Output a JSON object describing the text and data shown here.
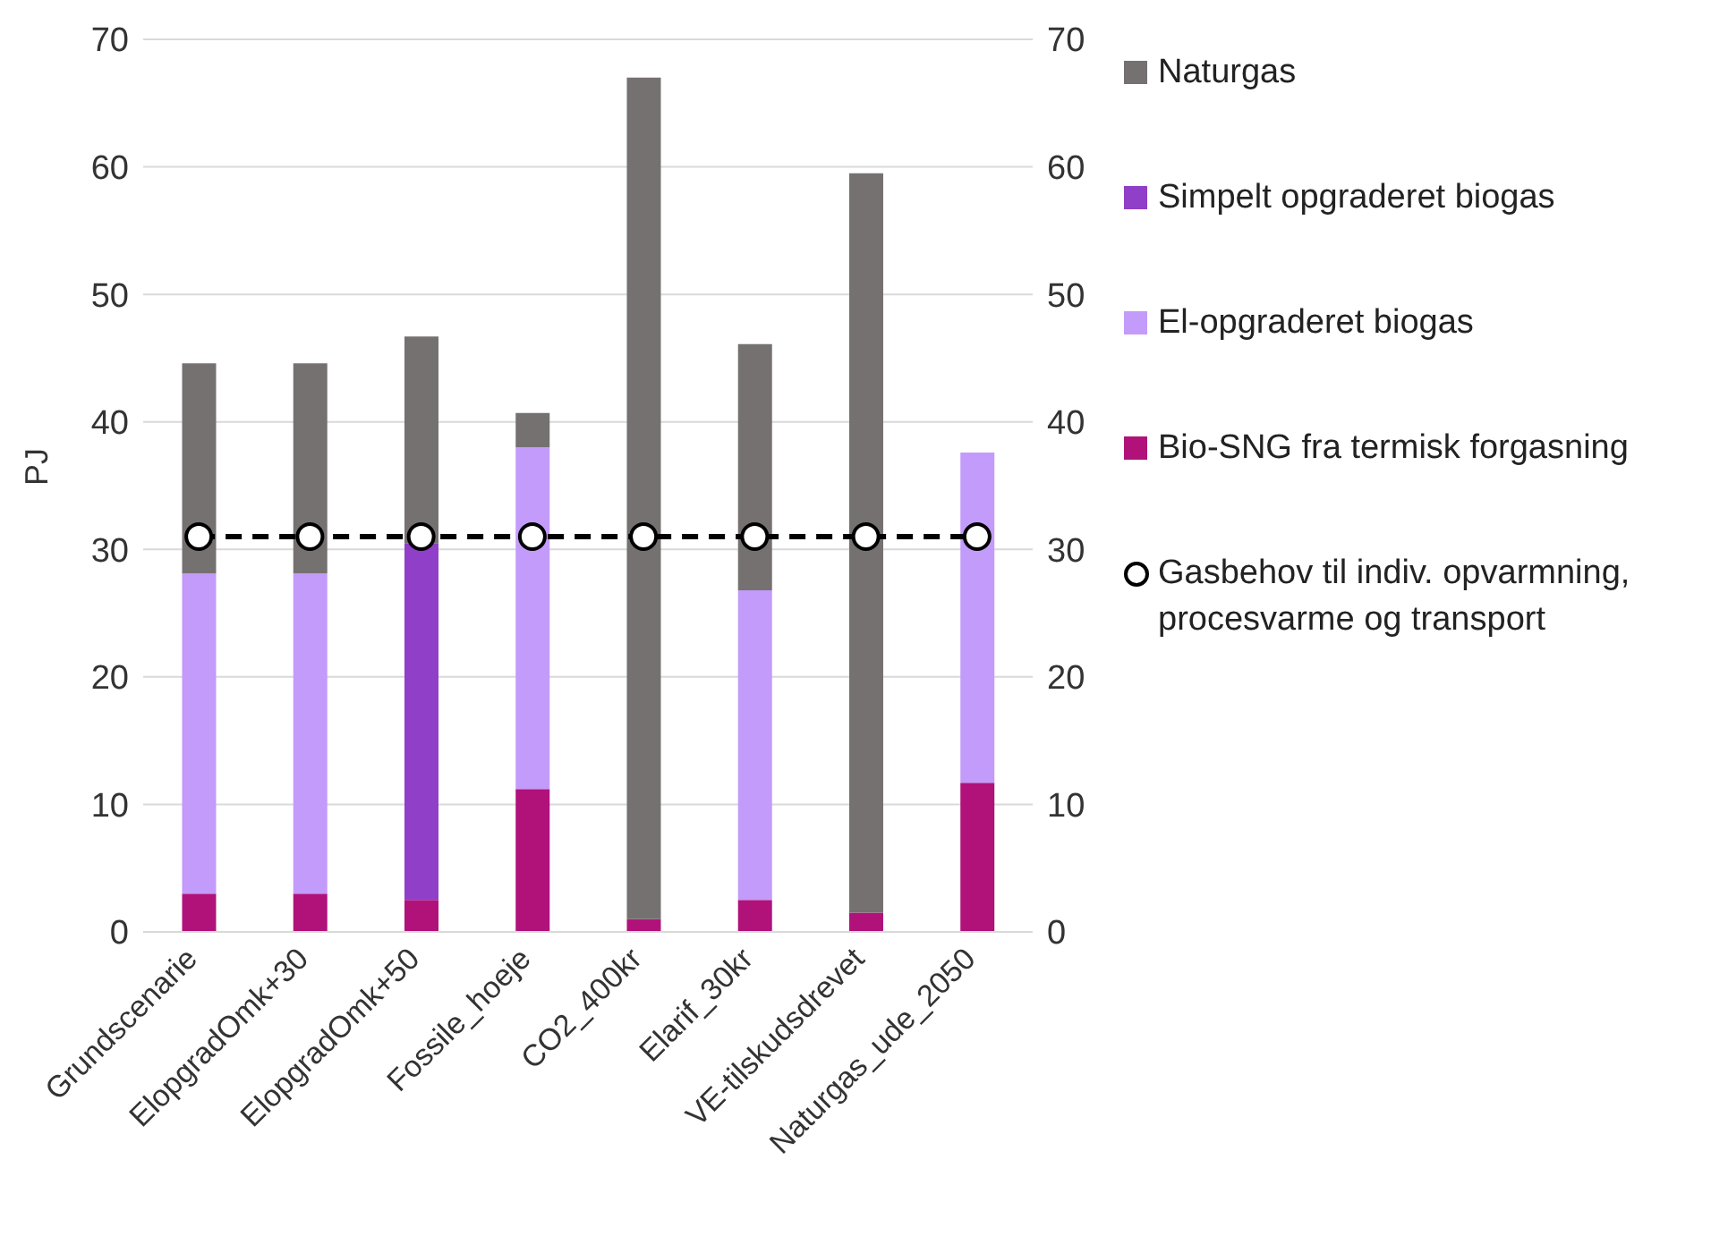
{
  "chart_data": {
    "type": "bar",
    "stacked": true,
    "ylabel": "PJ",
    "categories": [
      "Grundscenarie",
      "ElopgradOmk+30",
      "ElopgradOmk+50",
      "Fossile_hoeje",
      "CO2_400kr",
      "Elarif_30kr",
      "VE-tilskudsdrevet",
      "Naturgas_ude_2050"
    ],
    "series": [
      {
        "name": "Bio-SNG fra termisk forgasning",
        "color": "#b0127a",
        "values": [
          3,
          3,
          2.5,
          11.2,
          1,
          2.5,
          1.5,
          11.7
        ]
      },
      {
        "name": "El-opgraderet biogas",
        "color": "#c39bfa",
        "values": [
          25.1,
          25.1,
          null,
          26.8,
          null,
          24.3,
          null,
          25.9
        ]
      },
      {
        "name": "Simpelt opgraderet biogas",
        "color": "#8f3fc8",
        "values": [
          null,
          null,
          28,
          null,
          null,
          null,
          null,
          null
        ]
      },
      {
        "name": "Naturgas",
        "color": "#767171",
        "values": [
          16.5,
          16.5,
          16.2,
          2.7,
          66,
          19.3,
          58,
          null
        ]
      },
      {
        "name": "Gasbehov til indiv. opvarmning, procesvarme og transport",
        "type": "line",
        "color": "#000000",
        "marker": "circle",
        "line_style": "dashed",
        "values": [
          31,
          31,
          31,
          31,
          31,
          31,
          31,
          31
        ]
      }
    ],
    "ylim": [
      0,
      70
    ],
    "yticks": [
      0,
      10,
      20,
      30,
      40,
      50,
      60,
      70
    ],
    "y2lim": [
      0,
      70
    ],
    "y2ticks": [
      0,
      10,
      20,
      30,
      40,
      50,
      60,
      70
    ],
    "grid": "y",
    "legend": "right"
  }
}
